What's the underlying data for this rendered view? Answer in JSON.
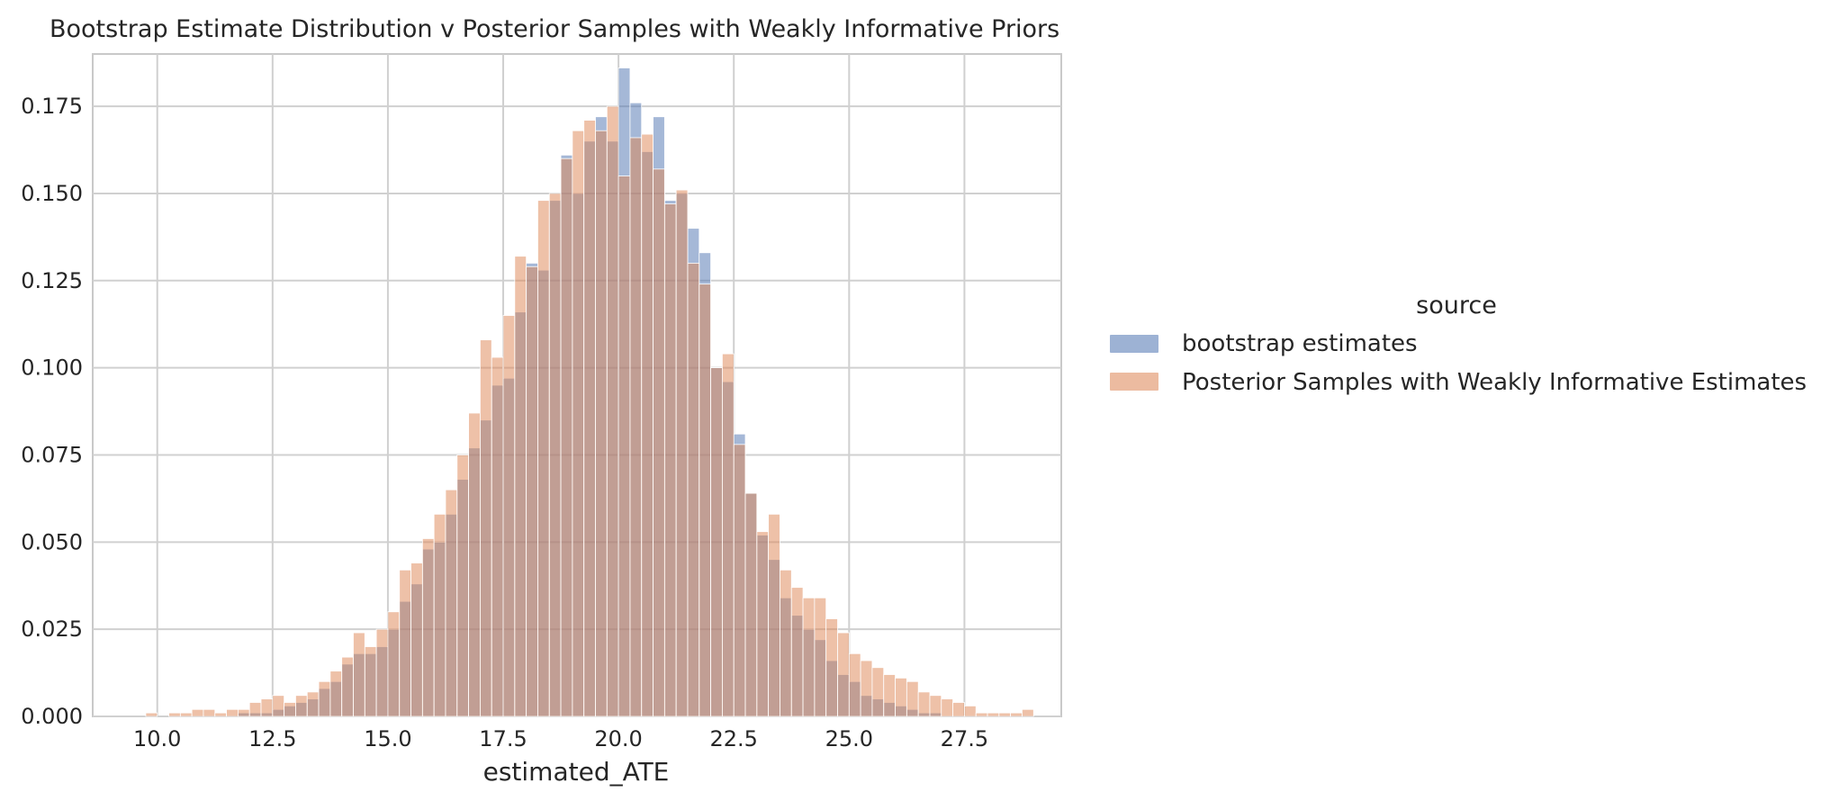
{
  "chart_data": {
    "type": "histogram",
    "title": "Bootstrap Estimate Distribution v Posterior Samples with Weakly Informative Priors",
    "xlabel": "estimated_ATE",
    "ylabel": "",
    "xlim": [
      8.6,
      29.6
    ],
    "ylim": [
      0,
      0.19
    ],
    "xticks": [
      10.0,
      12.5,
      15.0,
      17.5,
      20.0,
      22.5,
      25.0,
      27.5
    ],
    "xtick_labels": [
      "10.0",
      "12.5",
      "15.0",
      "17.5",
      "20.0",
      "22.5",
      "25.0",
      "27.5"
    ],
    "yticks": [
      0.0,
      0.025,
      0.05,
      0.075,
      0.1,
      0.125,
      0.15,
      0.175
    ],
    "ytick_labels": [
      "0.000",
      "0.025",
      "0.050",
      "0.075",
      "0.100",
      "0.125",
      "0.150",
      "0.175"
    ],
    "grid": true,
    "legend": {
      "title": "source",
      "placement": "right"
    },
    "bin_start": 9.75,
    "bin_width": 0.25,
    "series": [
      {
        "name": "bootstrap estimates",
        "color": "#4c72b0",
        "values": [
          0,
          0,
          0,
          0,
          0,
          0,
          0,
          0,
          0.001,
          0.001,
          0.001,
          0.002,
          0.003,
          0.004,
          0.005,
          0.008,
          0.01,
          0.015,
          0.018,
          0.018,
          0.02,
          0.025,
          0.033,
          0.038,
          0.048,
          0.05,
          0.058,
          0.068,
          0.077,
          0.085,
          0.095,
          0.097,
          0.116,
          0.13,
          0.128,
          0.148,
          0.161,
          0.15,
          0.165,
          0.172,
          0.165,
          0.186,
          0.176,
          0.162,
          0.172,
          0.148,
          0.15,
          0.14,
          0.133,
          0.1,
          0.096,
          0.081,
          0.064,
          0.052,
          0.045,
          0.034,
          0.029,
          0.025,
          0.022,
          0.016,
          0.012,
          0.01,
          0.006,
          0.005,
          0.004,
          0.003,
          0.002,
          0.001,
          0.001,
          0,
          0,
          0,
          0,
          0,
          0,
          0,
          0
        ]
      },
      {
        "name": "Posterior Samples with Weakly Informative Estimates",
        "color": "#dd8452",
        "values": [
          0.001,
          0,
          0.001,
          0.001,
          0.002,
          0.002,
          0.001,
          0.002,
          0.002,
          0.004,
          0.005,
          0.006,
          0.004,
          0.006,
          0.007,
          0.01,
          0.013,
          0.017,
          0.024,
          0.02,
          0.025,
          0.03,
          0.042,
          0.044,
          0.051,
          0.058,
          0.065,
          0.075,
          0.087,
          0.108,
          0.103,
          0.115,
          0.132,
          0.129,
          0.148,
          0.15,
          0.16,
          0.168,
          0.171,
          0.168,
          0.175,
          0.155,
          0.166,
          0.167,
          0.157,
          0.147,
          0.151,
          0.13,
          0.124,
          0.1,
          0.104,
          0.078,
          0.064,
          0.053,
          0.058,
          0.042,
          0.037,
          0.034,
          0.034,
          0.028,
          0.024,
          0.018,
          0.016,
          0.014,
          0.012,
          0.011,
          0.01,
          0.007,
          0.006,
          0.005,
          0.004,
          0.003,
          0.001,
          0.001,
          0.001,
          0.001,
          0.002
        ]
      }
    ]
  }
}
